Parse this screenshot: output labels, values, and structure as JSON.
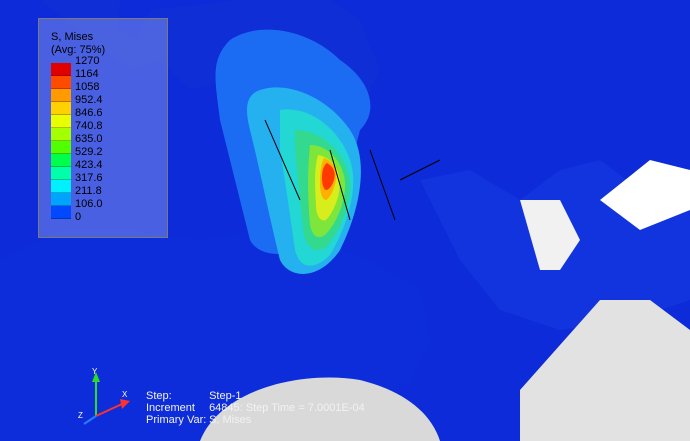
{
  "colors": {
    "background": "#0d2bd8",
    "plate": "#e2e2e2",
    "fringe": [
      "#1238e6",
      "#1b6cf3",
      "#25b0f0",
      "#23d7d5",
      "#33d98f",
      "#7ee63a",
      "#d8ee1c",
      "#ffb000",
      "#ff3a00"
    ]
  },
  "legend": {
    "title": "S, Mises",
    "subtitle": "(Avg: 75%)",
    "values": [
      "1270",
      "1164",
      "1058",
      "952.4",
      "846.6",
      "740.8",
      "635.0",
      "529.2",
      "423.4",
      "317.6",
      "211.8",
      "106.0",
      "0"
    ],
    "swatch_colors": [
      "#e10000",
      "#ff4b00",
      "#ff9b00",
      "#ffd100",
      "#e7ff00",
      "#a4ff00",
      "#52ff00",
      "#00ff4d",
      "#00ffa9",
      "#00f0ff",
      "#00a4ff",
      "#0049ff"
    ]
  },
  "triad": {
    "y_label": "Y",
    "x_label": "X",
    "z_label": "Z",
    "icon": "axis-triad-icon"
  },
  "status": {
    "step_label": "Step:",
    "step_value": "Step-1",
    "increment_label": "Increment",
    "increment_value": "64845: Step Time =   7.0001E-04",
    "var_label": "Primary Var:",
    "var_value": "S, Mises"
  }
}
